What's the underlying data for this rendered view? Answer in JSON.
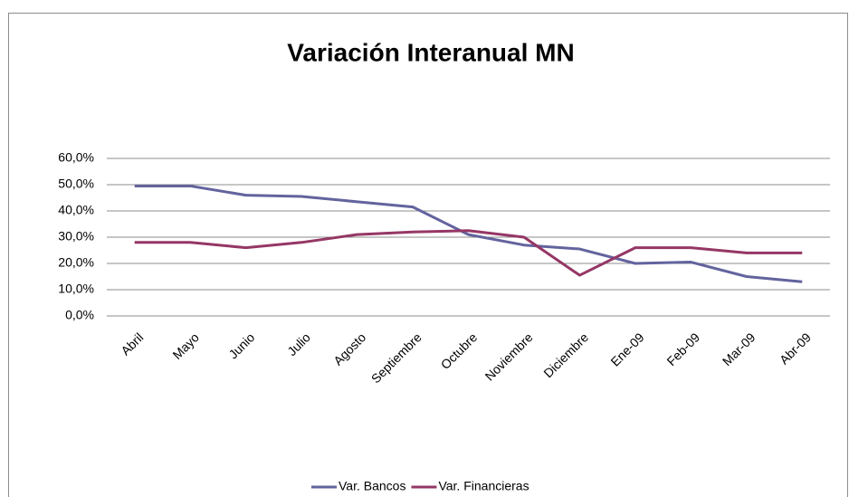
{
  "chart_data": {
    "type": "line",
    "title": "Variación Interanual MN",
    "categories": [
      "Abril",
      "Mayo",
      "Junio",
      "Julio",
      "Agosto",
      "Septiembre",
      "Octubre",
      "Noviembre",
      "Diciembre",
      "Ene-09",
      "Feb-09",
      "Mar-09",
      "Abr-09"
    ],
    "series": [
      {
        "name": "Var. Bancos",
        "color": "#63639e",
        "values": [
          49.5,
          49.5,
          46,
          45.5,
          43.5,
          41.5,
          31,
          27,
          25.5,
          20,
          20.5,
          15,
          13
        ]
      },
      {
        "name": "Var. Financieras",
        "color": "#953765",
        "values": [
          28,
          28,
          26,
          28,
          31,
          32,
          32.5,
          30,
          15.5,
          26,
          26,
          24,
          24
        ]
      }
    ],
    "ylim": [
      0,
      60
    ],
    "yticks": [
      {
        "value": 0,
        "label": "0,0%"
      },
      {
        "value": 10,
        "label": "10,0%"
      },
      {
        "value": 20,
        "label": "20,0%"
      },
      {
        "value": 30,
        "label": "30,0%"
      },
      {
        "value": 40,
        "label": "40,0%"
      },
      {
        "value": 50,
        "label": "50,0%"
      },
      {
        "value": 60,
        "label": "60,0%"
      }
    ],
    "grid": true,
    "legend": "bottom"
  }
}
